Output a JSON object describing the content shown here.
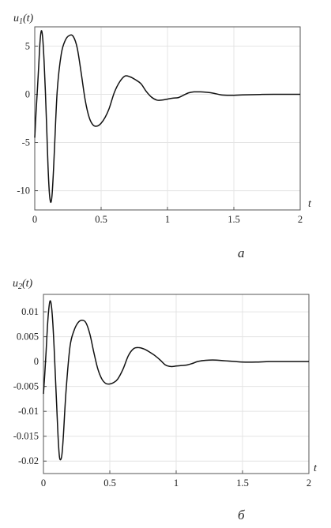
{
  "chart_data": [
    {
      "type": "line",
      "ylabel_main": "u",
      "ylabel_sub": "1",
      "ylabel_arg": "(t)",
      "xlabel": "t",
      "panel_label": "a",
      "xlim": [
        0,
        2
      ],
      "ylim": [
        -12,
        7
      ],
      "xticks": [
        0,
        0.5,
        1,
        1.5,
        2
      ],
      "xtick_labels": [
        "0",
        "0.5",
        "1",
        "1.5",
        "2"
      ],
      "yticks": [
        5,
        0,
        -5,
        -10
      ],
      "ytick_labels": [
        "5",
        "0",
        "-5",
        "-10"
      ],
      "grid": true,
      "x": [
        0,
        0.01,
        0.02,
        0.03,
        0.04,
        0.05,
        0.06,
        0.07,
        0.08,
        0.09,
        0.1,
        0.11,
        0.12,
        0.13,
        0.14,
        0.15,
        0.17,
        0.2,
        0.23,
        0.26,
        0.29,
        0.32,
        0.35,
        0.38,
        0.41,
        0.44,
        0.47,
        0.5,
        0.53,
        0.56,
        0.6,
        0.64,
        0.68,
        0.72,
        0.76,
        0.8,
        0.84,
        0.88,
        0.92,
        0.96,
        1.0,
        1.04,
        1.08,
        1.12,
        1.16,
        1.2,
        1.25,
        1.3,
        1.35,
        1.4,
        1.45,
        1.5,
        1.6,
        1.7,
        1.8,
        1.9,
        2.0
      ],
      "y": [
        -4.5,
        -1.8,
        0.5,
        3.0,
        5.5,
        6.6,
        5.8,
        3.5,
        0.3,
        -3.5,
        -7.5,
        -10.2,
        -11.2,
        -10.5,
        -8.2,
        -5.2,
        0.5,
        4.2,
        5.6,
        6.1,
        6.0,
        4.8,
        2.2,
        -0.6,
        -2.4,
        -3.2,
        -3.3,
        -3.0,
        -2.4,
        -1.5,
        0.2,
        1.3,
        1.9,
        1.8,
        1.5,
        1.1,
        0.3,
        -0.3,
        -0.6,
        -0.6,
        -0.5,
        -0.4,
        -0.35,
        -0.1,
        0.15,
        0.25,
        0.25,
        0.2,
        0.1,
        -0.05,
        -0.1,
        -0.1,
        -0.05,
        -0.02,
        0.0,
        0.0,
        0.0
      ]
    },
    {
      "type": "line",
      "ylabel_main": "u",
      "ylabel_sub": "2",
      "ylabel_arg": "(t)",
      "xlabel": "t",
      "panel_label": "б",
      "xlim": [
        0,
        2
      ],
      "ylim": [
        -0.0225,
        0.0135
      ],
      "xticks": [
        0,
        0.5,
        1,
        1.5,
        2
      ],
      "xtick_labels": [
        "0",
        "0.5",
        "1",
        "1.5",
        "2"
      ],
      "yticks": [
        0.01,
        0.005,
        0,
        -0.005,
        -0.01,
        -0.015,
        -0.02
      ],
      "ytick_labels": [
        "0.01",
        "0.005",
        "0",
        "-0.005",
        "-0.01",
        "-0.015",
        "-0.02"
      ],
      "grid": true,
      "x": [
        0,
        0.01,
        0.02,
        0.03,
        0.04,
        0.05,
        0.06,
        0.07,
        0.08,
        0.09,
        0.1,
        0.11,
        0.12,
        0.13,
        0.14,
        0.15,
        0.17,
        0.2,
        0.23,
        0.26,
        0.29,
        0.32,
        0.35,
        0.38,
        0.41,
        0.44,
        0.47,
        0.5,
        0.53,
        0.56,
        0.6,
        0.64,
        0.68,
        0.72,
        0.76,
        0.8,
        0.84,
        0.88,
        0.92,
        0.96,
        1.0,
        1.04,
        1.08,
        1.12,
        1.16,
        1.2,
        1.25,
        1.3,
        1.35,
        1.4,
        1.45,
        1.5,
        1.6,
        1.7,
        1.8,
        1.9,
        2.0
      ],
      "y": [
        -0.0065,
        -0.0025,
        0.002,
        0.007,
        0.0105,
        0.0122,
        0.0112,
        0.008,
        0.003,
        -0.003,
        -0.009,
        -0.015,
        -0.019,
        -0.0197,
        -0.0185,
        -0.015,
        -0.006,
        0.003,
        0.0062,
        0.0078,
        0.0083,
        0.0078,
        0.0055,
        0.0018,
        -0.0015,
        -0.0035,
        -0.0044,
        -0.0045,
        -0.0042,
        -0.0035,
        -0.0015,
        0.0012,
        0.0026,
        0.0028,
        0.0025,
        0.0019,
        0.0012,
        0.0003,
        -0.0007,
        -0.001,
        -0.0009,
        -0.0008,
        -0.0007,
        -0.0004,
        0.0,
        0.0002,
        0.0003,
        0.0003,
        0.0002,
        0.0001,
        0.0,
        -0.0001,
        -0.0001,
        0.0,
        0.0,
        0.0,
        0.0
      ]
    }
  ]
}
